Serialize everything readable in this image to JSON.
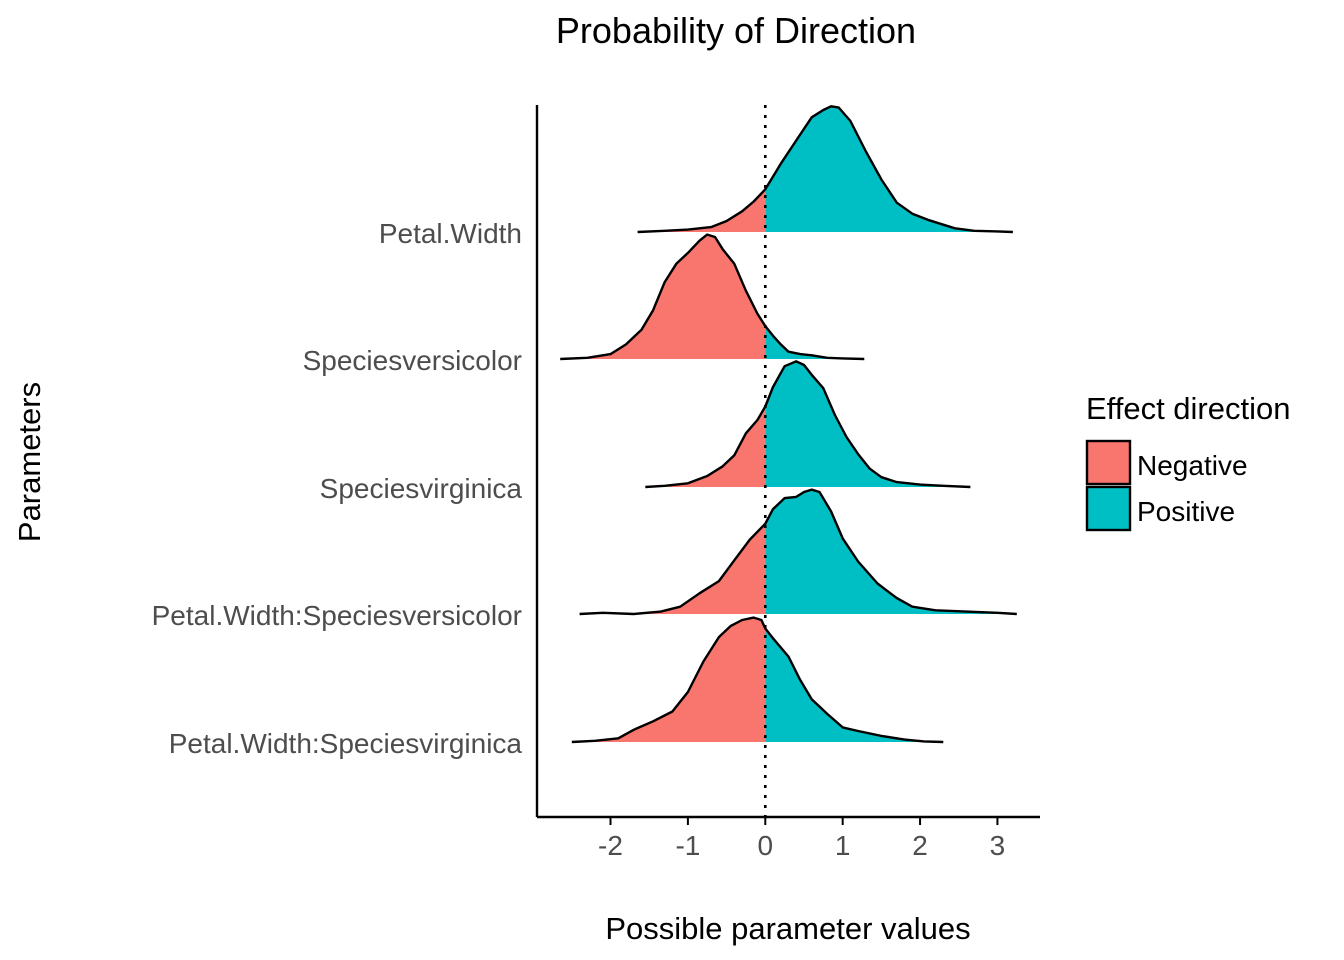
{
  "chart_data": {
    "type": "area",
    "title": "Probability of Direction",
    "xlabel": "Possible parameter values",
    "ylabel": "Parameters",
    "xlim": [
      -2.95,
      3.55
    ],
    "xticks": [
      -2,
      -1,
      0,
      1,
      2,
      3
    ],
    "x_tick_labels": [
      "-2",
      "-1",
      "0",
      "1",
      "2",
      "3"
    ],
    "reference_line_x": 0,
    "grid": false,
    "legend": {
      "title": "Effect direction",
      "position": "right",
      "entries": [
        {
          "label": "Negative",
          "color": "#F8766D"
        },
        {
          "label": "Positive",
          "color": "#00BFC4"
        }
      ]
    },
    "colors": {
      "negative": "#F8766D",
      "positive": "#00BFC4",
      "outline": "#000000"
    },
    "series": [
      {
        "name": "Petal.Width",
        "points": [
          [
            -1.65,
            0.0
          ],
          [
            -1.3,
            0.01
          ],
          [
            -1.0,
            0.02
          ],
          [
            -0.7,
            0.04
          ],
          [
            -0.5,
            0.09
          ],
          [
            -0.3,
            0.17
          ],
          [
            -0.15,
            0.25
          ],
          [
            0.0,
            0.35
          ],
          [
            0.2,
            0.56
          ],
          [
            0.4,
            0.75
          ],
          [
            0.6,
            0.94
          ],
          [
            0.75,
            1.0
          ],
          [
            0.85,
            1.03
          ],
          [
            0.95,
            1.02
          ],
          [
            1.1,
            0.91
          ],
          [
            1.3,
            0.66
          ],
          [
            1.5,
            0.43
          ],
          [
            1.7,
            0.24
          ],
          [
            1.9,
            0.15
          ],
          [
            2.1,
            0.1
          ],
          [
            2.3,
            0.06
          ],
          [
            2.45,
            0.03
          ],
          [
            2.7,
            0.01
          ],
          [
            3.0,
            0.005
          ],
          [
            3.2,
            0.0
          ]
        ]
      },
      {
        "name": "Speciesversicolor",
        "points": [
          [
            -2.65,
            0.0
          ],
          [
            -2.3,
            0.01
          ],
          [
            -2.0,
            0.04
          ],
          [
            -1.8,
            0.12
          ],
          [
            -1.6,
            0.24
          ],
          [
            -1.45,
            0.4
          ],
          [
            -1.3,
            0.63
          ],
          [
            -1.15,
            0.78
          ],
          [
            -1.0,
            0.87
          ],
          [
            -0.85,
            0.97
          ],
          [
            -0.75,
            1.02
          ],
          [
            -0.65,
            1.0
          ],
          [
            -0.55,
            0.9
          ],
          [
            -0.4,
            0.78
          ],
          [
            -0.25,
            0.56
          ],
          [
            -0.1,
            0.37
          ],
          [
            0.0,
            0.27
          ],
          [
            0.1,
            0.19
          ],
          [
            0.2,
            0.12
          ],
          [
            0.3,
            0.06
          ],
          [
            0.45,
            0.04
          ],
          [
            0.6,
            0.03
          ],
          [
            0.8,
            0.01
          ],
          [
            1.0,
            0.005
          ],
          [
            1.28,
            0.0
          ]
        ]
      },
      {
        "name": "Speciesvirginica",
        "points": [
          [
            -1.55,
            0.0
          ],
          [
            -1.3,
            0.01
          ],
          [
            -1.0,
            0.03
          ],
          [
            -0.75,
            0.09
          ],
          [
            -0.55,
            0.17
          ],
          [
            -0.4,
            0.26
          ],
          [
            -0.25,
            0.44
          ],
          [
            -0.1,
            0.55
          ],
          [
            0.0,
            0.66
          ],
          [
            0.1,
            0.82
          ],
          [
            0.25,
            0.99
          ],
          [
            0.4,
            1.03
          ],
          [
            0.5,
            1.0
          ],
          [
            0.6,
            0.92
          ],
          [
            0.75,
            0.81
          ],
          [
            0.9,
            0.59
          ],
          [
            1.05,
            0.41
          ],
          [
            1.2,
            0.27
          ],
          [
            1.35,
            0.15
          ],
          [
            1.5,
            0.08
          ],
          [
            1.7,
            0.04
          ],
          [
            2.0,
            0.02
          ],
          [
            2.3,
            0.01
          ],
          [
            2.65,
            0.0
          ]
        ]
      },
      {
        "name": "Petal.Width:Speciesversicolor",
        "points": [
          [
            -2.4,
            0.0
          ],
          [
            -2.1,
            0.01
          ],
          [
            -1.7,
            0.0
          ],
          [
            -1.35,
            0.02
          ],
          [
            -1.1,
            0.06
          ],
          [
            -0.85,
            0.17
          ],
          [
            -0.6,
            0.27
          ],
          [
            -0.4,
            0.44
          ],
          [
            -0.2,
            0.61
          ],
          [
            0.0,
            0.74
          ],
          [
            0.1,
            0.86
          ],
          [
            0.25,
            0.95
          ],
          [
            0.4,
            0.96
          ],
          [
            0.5,
            1.0
          ],
          [
            0.6,
            1.02
          ],
          [
            0.7,
            1.0
          ],
          [
            0.85,
            0.84
          ],
          [
            1.0,
            0.62
          ],
          [
            1.2,
            0.43
          ],
          [
            1.45,
            0.25
          ],
          [
            1.7,
            0.13
          ],
          [
            1.9,
            0.06
          ],
          [
            2.2,
            0.03
          ],
          [
            2.6,
            0.02
          ],
          [
            3.0,
            0.01
          ],
          [
            3.25,
            0.0
          ]
        ]
      },
      {
        "name": "Petal.Width:Speciesvirginica",
        "points": [
          [
            -2.5,
            0.0
          ],
          [
            -2.2,
            0.01
          ],
          [
            -1.9,
            0.03
          ],
          [
            -1.7,
            0.1
          ],
          [
            -1.45,
            0.17
          ],
          [
            -1.2,
            0.25
          ],
          [
            -1.0,
            0.41
          ],
          [
            -0.8,
            0.66
          ],
          [
            -0.6,
            0.86
          ],
          [
            -0.45,
            0.95
          ],
          [
            -0.3,
            1.0
          ],
          [
            -0.15,
            1.02
          ],
          [
            -0.05,
            1.0
          ],
          [
            0.0,
            0.93
          ],
          [
            0.1,
            0.85
          ],
          [
            0.3,
            0.7
          ],
          [
            0.45,
            0.51
          ],
          [
            0.6,
            0.35
          ],
          [
            0.8,
            0.23
          ],
          [
            1.0,
            0.12
          ],
          [
            1.2,
            0.09
          ],
          [
            1.5,
            0.05
          ],
          [
            1.8,
            0.02
          ],
          [
            2.05,
            0.005
          ],
          [
            2.3,
            0.0
          ]
        ]
      }
    ]
  }
}
